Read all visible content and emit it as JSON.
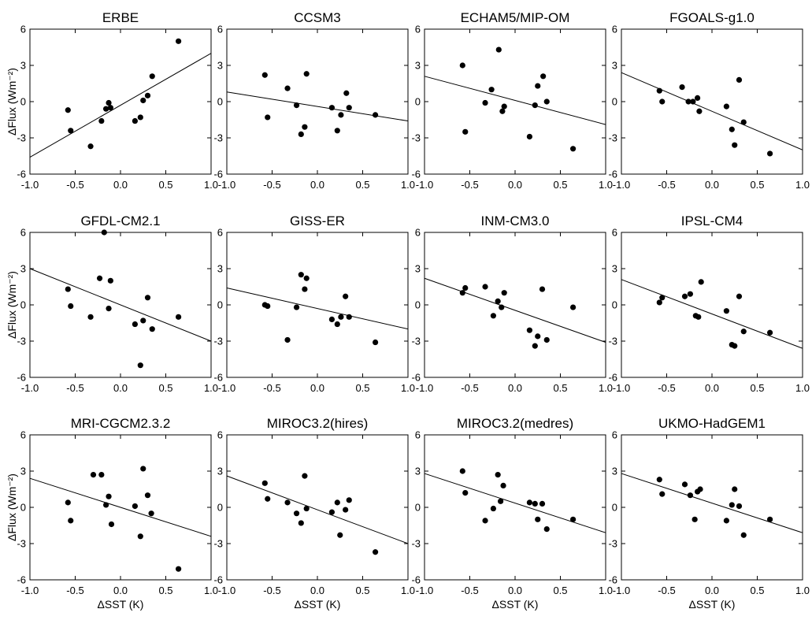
{
  "chart_data": [
    {
      "type": "scatter",
      "title": "ERBE",
      "ylabel": "ΔFlux (Wm⁻²)",
      "xlabel": "",
      "xlim": [
        -1.0,
        1.0
      ],
      "ylim": [
        -6,
        6
      ],
      "xticks": [
        "-1.0",
        "-0.5",
        "0.0",
        "0.5",
        "1.0"
      ],
      "yticks": [
        "6",
        "3",
        "0",
        "-3",
        "-6"
      ],
      "points": [
        [
          -0.58,
          -0.7
        ],
        [
          -0.55,
          -2.4
        ],
        [
          -0.33,
          -3.7
        ],
        [
          -0.21,
          -1.6
        ],
        [
          -0.16,
          -0.6
        ],
        [
          -0.13,
          -0.1
        ],
        [
          -0.11,
          -0.5
        ],
        [
          0.16,
          -1.6
        ],
        [
          0.22,
          -1.3
        ],
        [
          0.25,
          0.1
        ],
        [
          0.3,
          0.5
        ],
        [
          0.35,
          2.1
        ],
        [
          0.64,
          5.0
        ]
      ],
      "fit": [
        [
          -1.0,
          -4.6
        ],
        [
          1.0,
          4.0
        ]
      ]
    },
    {
      "type": "scatter",
      "title": "CCSM3",
      "ylabel": "",
      "xlabel": "",
      "xlim": [
        -1.0,
        1.0
      ],
      "ylim": [
        -6,
        6
      ],
      "xticks": [
        "-1.0",
        "-0.5",
        "0.0",
        "0.5",
        "1.0"
      ],
      "yticks": [
        "6",
        "3",
        "0",
        "-3",
        "-6"
      ],
      "points": [
        [
          -0.58,
          2.2
        ],
        [
          -0.55,
          -1.3
        ],
        [
          -0.33,
          1.1
        ],
        [
          -0.23,
          -0.3
        ],
        [
          -0.18,
          -2.7
        ],
        [
          -0.14,
          -2.1
        ],
        [
          -0.12,
          2.3
        ],
        [
          0.16,
          -0.5
        ],
        [
          0.22,
          -2.4
        ],
        [
          0.26,
          -1.1
        ],
        [
          0.32,
          0.7
        ],
        [
          0.35,
          -0.5
        ],
        [
          0.64,
          -1.1
        ]
      ],
      "fit": [
        [
          -1.0,
          0.8
        ],
        [
          1.0,
          -1.6
        ]
      ]
    },
    {
      "type": "scatter",
      "title": "ECHAM5/MIP-OM",
      "ylabel": "",
      "xlabel": "",
      "xlim": [
        -1.0,
        1.0
      ],
      "ylim": [
        -6,
        6
      ],
      "xticks": [
        "-1.0",
        "-0.5",
        "0.0",
        "0.5",
        "1.0"
      ],
      "yticks": [
        "6",
        "3",
        "0",
        "-3",
        "-6"
      ],
      "points": [
        [
          -0.58,
          3.0
        ],
        [
          -0.55,
          -2.5
        ],
        [
          -0.33,
          -0.1
        ],
        [
          -0.26,
          1.0
        ],
        [
          -0.18,
          4.3
        ],
        [
          -0.14,
          -0.8
        ],
        [
          -0.12,
          -0.4
        ],
        [
          0.16,
          -2.9
        ],
        [
          0.22,
          -0.3
        ],
        [
          0.25,
          1.3
        ],
        [
          0.31,
          2.1
        ],
        [
          0.35,
          0.0
        ],
        [
          0.64,
          -3.9
        ]
      ],
      "fit": [
        [
          -1.0,
          2.1
        ],
        [
          1.0,
          -1.9
        ]
      ]
    },
    {
      "type": "scatter",
      "title": "FGOALS-g1.0",
      "ylabel": "",
      "xlabel": "",
      "xlim": [
        -1.0,
        1.0
      ],
      "ylim": [
        -6,
        6
      ],
      "xticks": [
        "-1.0",
        "-0.5",
        "0.0",
        "0.5",
        "1.0"
      ],
      "yticks": [
        "6",
        "3",
        "0",
        "-3",
        "-6"
      ],
      "points": [
        [
          -0.58,
          0.9
        ],
        [
          -0.55,
          0.0
        ],
        [
          -0.33,
          1.2
        ],
        [
          -0.26,
          0.0
        ],
        [
          -0.21,
          0.0
        ],
        [
          -0.16,
          0.3
        ],
        [
          -0.14,
          -0.8
        ],
        [
          0.16,
          -0.4
        ],
        [
          0.22,
          -2.3
        ],
        [
          0.25,
          -3.6
        ],
        [
          0.3,
          1.8
        ],
        [
          0.35,
          -1.7
        ],
        [
          0.64,
          -4.3
        ]
      ],
      "fit": [
        [
          -1.0,
          2.4
        ],
        [
          1.0,
          -4.0
        ]
      ]
    },
    {
      "type": "scatter",
      "title": "GFDL-CM2.1",
      "ylabel": "ΔFlux (Wm⁻²)",
      "xlabel": "",
      "xlim": [
        -1.0,
        1.0
      ],
      "ylim": [
        -6,
        6
      ],
      "xticks": [
        "-1.0",
        "-0.5",
        "0.0",
        "0.5",
        "1.0"
      ],
      "yticks": [
        "6",
        "3",
        "0",
        "-3",
        "-6"
      ],
      "points": [
        [
          -0.58,
          1.3
        ],
        [
          -0.55,
          -0.1
        ],
        [
          -0.33,
          -1.0
        ],
        [
          -0.23,
          2.2
        ],
        [
          -0.18,
          6.0
        ],
        [
          -0.13,
          -0.3
        ],
        [
          -0.11,
          2.0
        ],
        [
          0.16,
          -1.6
        ],
        [
          0.22,
          -5.0
        ],
        [
          0.25,
          -1.3
        ],
        [
          0.3,
          0.6
        ],
        [
          0.35,
          -2.0
        ],
        [
          0.64,
          -1.0
        ]
      ],
      "fit": [
        [
          -1.0,
          3.0
        ],
        [
          1.0,
          -3.0
        ]
      ]
    },
    {
      "type": "scatter",
      "title": "GISS-ER",
      "ylabel": "",
      "xlabel": "",
      "xlim": [
        -1.0,
        1.0
      ],
      "ylim": [
        -6,
        6
      ],
      "xticks": [
        "-1.0",
        "-0.5",
        "0.0",
        "0.5",
        "1.0"
      ],
      "yticks": [
        "6",
        "3",
        "0",
        "-3",
        "-6"
      ],
      "points": [
        [
          -0.58,
          0.0
        ],
        [
          -0.55,
          -0.1
        ],
        [
          -0.33,
          -2.9
        ],
        [
          -0.23,
          -0.2
        ],
        [
          -0.18,
          2.5
        ],
        [
          -0.14,
          1.3
        ],
        [
          -0.12,
          2.2
        ],
        [
          0.16,
          -1.2
        ],
        [
          0.22,
          -1.6
        ],
        [
          0.26,
          -1.0
        ],
        [
          0.31,
          0.7
        ],
        [
          0.35,
          -1.0
        ],
        [
          0.64,
          -3.1
        ]
      ],
      "fit": [
        [
          -1.0,
          1.4
        ],
        [
          1.0,
          -2.0
        ]
      ]
    },
    {
      "type": "scatter",
      "title": "INM-CM3.0",
      "ylabel": "",
      "xlabel": "",
      "xlim": [
        -1.0,
        1.0
      ],
      "ylim": [
        -6,
        6
      ],
      "xticks": [
        "-1.0",
        "-0.5",
        "0.0",
        "0.5",
        "1.0"
      ],
      "yticks": [
        "6",
        "3",
        "0",
        "-3",
        "-6"
      ],
      "points": [
        [
          -0.58,
          1.0
        ],
        [
          -0.55,
          1.4
        ],
        [
          -0.33,
          1.5
        ],
        [
          -0.24,
          -0.9
        ],
        [
          -0.19,
          0.3
        ],
        [
          -0.15,
          -0.2
        ],
        [
          -0.12,
          1.0
        ],
        [
          0.16,
          -2.1
        ],
        [
          0.22,
          -3.4
        ],
        [
          0.25,
          -2.6
        ],
        [
          0.3,
          1.3
        ],
        [
          0.35,
          -2.9
        ],
        [
          0.64,
          -0.2
        ]
      ],
      "fit": [
        [
          -1.0,
          2.2
        ],
        [
          1.0,
          -3.1
        ]
      ]
    },
    {
      "type": "scatter",
      "title": "IPSL-CM4",
      "ylabel": "",
      "xlabel": "",
      "xlim": [
        -1.0,
        1.0
      ],
      "ylim": [
        -6,
        6
      ],
      "xticks": [
        "-1.0",
        "-0.5",
        "0.0",
        "0.5",
        "1.0"
      ],
      "yticks": [
        "6",
        "3",
        "0",
        "-3",
        "-6"
      ],
      "points": [
        [
          -0.58,
          0.2
        ],
        [
          -0.55,
          0.6
        ],
        [
          -0.3,
          0.7
        ],
        [
          -0.24,
          0.9
        ],
        [
          -0.18,
          -0.9
        ],
        [
          -0.15,
          -1.0
        ],
        [
          -0.12,
          1.9
        ],
        [
          0.16,
          -0.5
        ],
        [
          0.22,
          -3.3
        ],
        [
          0.25,
          -3.4
        ],
        [
          0.3,
          0.7
        ],
        [
          0.35,
          -2.2
        ],
        [
          0.64,
          -2.3
        ]
      ],
      "fit": [
        [
          -1.0,
          2.1
        ],
        [
          1.0,
          -3.6
        ]
      ]
    },
    {
      "type": "scatter",
      "title": "MRI-CGCM2.3.2",
      "ylabel": "ΔFlux (Wm⁻²)",
      "xlabel": "ΔSST (K)",
      "xlim": [
        -1.0,
        1.0
      ],
      "ylim": [
        -6,
        6
      ],
      "xticks": [
        "-1.0",
        "-0.5",
        "0.0",
        "0.5",
        "1.0"
      ],
      "yticks": [
        "6",
        "3",
        "0",
        "-3",
        "-6"
      ],
      "points": [
        [
          -0.58,
          0.4
        ],
        [
          -0.55,
          -1.1
        ],
        [
          -0.3,
          2.7
        ],
        [
          -0.21,
          2.7
        ],
        [
          -0.16,
          0.2
        ],
        [
          -0.13,
          0.9
        ],
        [
          -0.1,
          -1.4
        ],
        [
          0.16,
          0.1
        ],
        [
          0.22,
          -2.4
        ],
        [
          0.25,
          3.2
        ],
        [
          0.3,
          1.0
        ],
        [
          0.34,
          -0.5
        ],
        [
          0.64,
          -5.1
        ]
      ],
      "fit": [
        [
          -1.0,
          2.4
        ],
        [
          1.0,
          -2.4
        ]
      ]
    },
    {
      "type": "scatter",
      "title": "MIROC3.2(hires)",
      "ylabel": "",
      "xlabel": "ΔSST (K)",
      "xlim": [
        -1.0,
        1.0
      ],
      "ylim": [
        -6,
        6
      ],
      "xticks": [
        "-1.0",
        "-0.5",
        "0.0",
        "0.5",
        "1.0"
      ],
      "yticks": [
        "6",
        "3",
        "0",
        "-3",
        "-6"
      ],
      "points": [
        [
          -0.58,
          2.0
        ],
        [
          -0.55,
          0.7
        ],
        [
          -0.33,
          0.4
        ],
        [
          -0.23,
          -0.5
        ],
        [
          -0.18,
          -1.3
        ],
        [
          -0.14,
          2.6
        ],
        [
          -0.12,
          -0.1
        ],
        [
          0.16,
          -0.4
        ],
        [
          0.22,
          0.4
        ],
        [
          0.25,
          -2.3
        ],
        [
          0.31,
          -0.2
        ],
        [
          0.35,
          0.6
        ],
        [
          0.64,
          -3.7
        ]
      ],
      "fit": [
        [
          -1.0,
          2.6
        ],
        [
          1.0,
          -3.0
        ]
      ]
    },
    {
      "type": "scatter",
      "title": "MIROC3.2(medres)",
      "ylabel": "",
      "xlabel": "ΔSST (K)",
      "xlim": [
        -1.0,
        1.0
      ],
      "ylim": [
        -6,
        6
      ],
      "xticks": [
        "-1.0",
        "-0.5",
        "0.0",
        "0.5",
        "1.0"
      ],
      "yticks": [
        "6",
        "3",
        "0",
        "-3",
        "-6"
      ],
      "points": [
        [
          -0.58,
          3.0
        ],
        [
          -0.55,
          1.2
        ],
        [
          -0.33,
          -1.1
        ],
        [
          -0.24,
          -0.1
        ],
        [
          -0.19,
          2.7
        ],
        [
          -0.16,
          0.5
        ],
        [
          -0.13,
          1.8
        ],
        [
          0.16,
          0.4
        ],
        [
          0.22,
          0.3
        ],
        [
          0.25,
          -1.0
        ],
        [
          0.3,
          0.3
        ],
        [
          0.35,
          -1.8
        ],
        [
          0.64,
          -1.0
        ]
      ],
      "fit": [
        [
          -1.0,
          2.8
        ],
        [
          1.0,
          -2.1
        ]
      ]
    },
    {
      "type": "scatter",
      "title": "UKMO-HadGEM1",
      "ylabel": "",
      "xlabel": "ΔSST (K)",
      "xlim": [
        -1.0,
        1.0
      ],
      "ylim": [
        -6,
        6
      ],
      "xticks": [
        "-1.0",
        "-0.5",
        "0.0",
        "0.5",
        "1.0"
      ],
      "yticks": [
        "6",
        "3",
        "0",
        "-3",
        "-6"
      ],
      "points": [
        [
          -0.58,
          2.3
        ],
        [
          -0.55,
          1.1
        ],
        [
          -0.3,
          1.9
        ],
        [
          -0.24,
          1.0
        ],
        [
          -0.19,
          -1.0
        ],
        [
          -0.16,
          1.3
        ],
        [
          -0.13,
          1.5
        ],
        [
          0.16,
          -1.1
        ],
        [
          0.22,
          0.2
        ],
        [
          0.25,
          1.5
        ],
        [
          0.3,
          0.1
        ],
        [
          0.35,
          -2.3
        ],
        [
          0.64,
          -1.0
        ]
      ],
      "fit": [
        [
          -1.0,
          2.8
        ],
        [
          1.0,
          -2.1
        ]
      ]
    }
  ]
}
